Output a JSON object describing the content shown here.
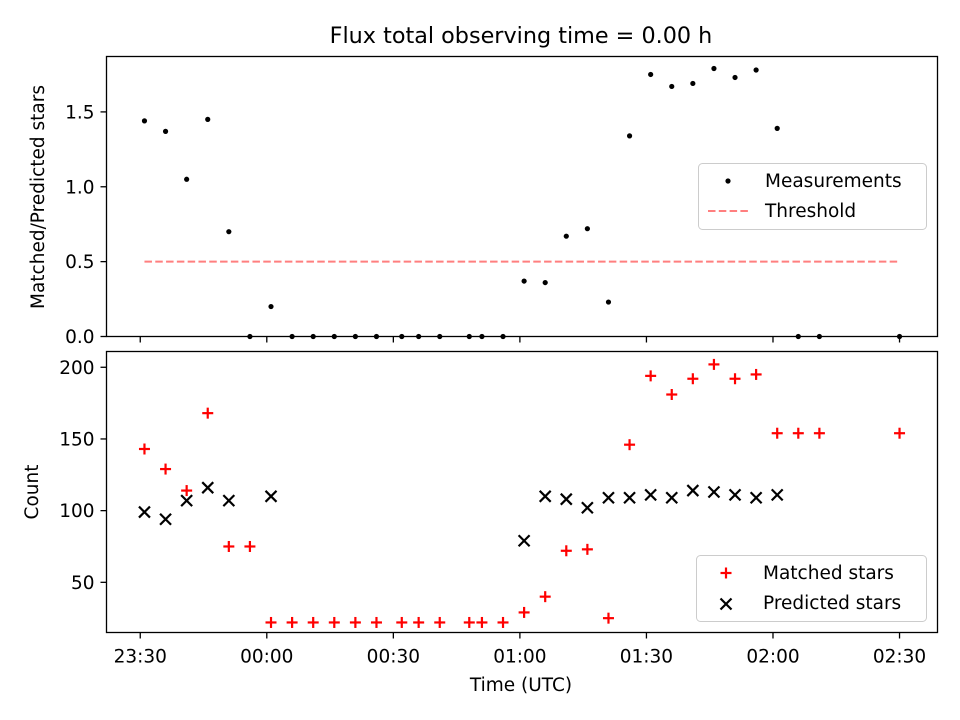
{
  "chart_data": [
    {
      "type": "scatter",
      "title": "Flux total observing time = 0.00 h",
      "xlabel": "",
      "ylabel": "Matched/Predicted stars",
      "ylim": [
        0,
        1.87
      ],
      "yticks": [
        "0.0",
        "0.5",
        "1.0",
        "1.5"
      ],
      "legend_position": "center-right",
      "series": [
        {
          "name": "Measurements",
          "marker": "dot",
          "color": "#000000",
          "points": [
            {
              "x": "23:31",
              "y": 1.44
            },
            {
              "x": "23:36",
              "y": 1.37
            },
            {
              "x": "23:41",
              "y": 1.05
            },
            {
              "x": "23:46",
              "y": 1.45
            },
            {
              "x": "23:51",
              "y": 0.7
            },
            {
              "x": "23:56",
              "y": 0.0
            },
            {
              "x": "00:01",
              "y": 0.2
            },
            {
              "x": "00:06",
              "y": 0.0
            },
            {
              "x": "00:11",
              "y": 0.0
            },
            {
              "x": "00:16",
              "y": 0.0
            },
            {
              "x": "00:21",
              "y": 0.0
            },
            {
              "x": "00:26",
              "y": 0.0
            },
            {
              "x": "00:32",
              "y": 0.0
            },
            {
              "x": "00:36",
              "y": 0.0
            },
            {
              "x": "00:41",
              "y": 0.0
            },
            {
              "x": "00:48",
              "y": 0.0
            },
            {
              "x": "00:51",
              "y": 0.0
            },
            {
              "x": "00:56",
              "y": 0.0
            },
            {
              "x": "01:01",
              "y": 0.37
            },
            {
              "x": "01:06",
              "y": 0.36
            },
            {
              "x": "01:11",
              "y": 0.67
            },
            {
              "x": "01:16",
              "y": 0.72
            },
            {
              "x": "01:21",
              "y": 0.23
            },
            {
              "x": "01:26",
              "y": 1.34
            },
            {
              "x": "01:31",
              "y": 1.75
            },
            {
              "x": "01:36",
              "y": 1.67
            },
            {
              "x": "01:41",
              "y": 1.69
            },
            {
              "x": "01:46",
              "y": 1.79
            },
            {
              "x": "01:51",
              "y": 1.73
            },
            {
              "x": "01:56",
              "y": 1.78
            },
            {
              "x": "02:01",
              "y": 1.39
            },
            {
              "x": "02:06",
              "y": 0.0
            },
            {
              "x": "02:11",
              "y": 0.0
            },
            {
              "x": "02:30",
              "y": 0.0
            }
          ]
        },
        {
          "name": "Threshold",
          "marker": "dashed-line",
          "color": "#ff7f7f",
          "points": [
            {
              "x": "23:31",
              "y": 0.5
            },
            {
              "x": "02:30",
              "y": 0.5
            }
          ]
        }
      ]
    },
    {
      "type": "scatter",
      "title": "",
      "xlabel": "Time (UTC)",
      "ylabel": "Count",
      "ylim": [
        15,
        211
      ],
      "yticks": [
        "50",
        "100",
        "150",
        "200"
      ],
      "xlim": [
        "23:22",
        "02:39"
      ],
      "xticks": [
        "23:30",
        "00:00",
        "00:30",
        "01:00",
        "01:30",
        "02:00",
        "02:30"
      ],
      "legend_position": "lower-right",
      "series": [
        {
          "name": "Matched stars",
          "marker": "plus",
          "color": "#ff0000",
          "points": [
            {
              "x": "23:31",
              "y": 143
            },
            {
              "x": "23:36",
              "y": 129
            },
            {
              "x": "23:41",
              "y": 114
            },
            {
              "x": "23:46",
              "y": 168
            },
            {
              "x": "23:51",
              "y": 75
            },
            {
              "x": "23:56",
              "y": 75
            },
            {
              "x": "00:01",
              "y": 22
            },
            {
              "x": "00:06",
              "y": 22
            },
            {
              "x": "00:11",
              "y": 22
            },
            {
              "x": "00:16",
              "y": 22
            },
            {
              "x": "00:21",
              "y": 22
            },
            {
              "x": "00:26",
              "y": 22
            },
            {
              "x": "00:32",
              "y": 22
            },
            {
              "x": "00:36",
              "y": 22
            },
            {
              "x": "00:41",
              "y": 22
            },
            {
              "x": "00:48",
              "y": 22
            },
            {
              "x": "00:51",
              "y": 22
            },
            {
              "x": "00:56",
              "y": 22
            },
            {
              "x": "01:01",
              "y": 29
            },
            {
              "x": "01:06",
              "y": 40
            },
            {
              "x": "01:11",
              "y": 72
            },
            {
              "x": "01:16",
              "y": 73
            },
            {
              "x": "01:21",
              "y": 25
            },
            {
              "x": "01:26",
              "y": 146
            },
            {
              "x": "01:31",
              "y": 194
            },
            {
              "x": "01:36",
              "y": 181
            },
            {
              "x": "01:41",
              "y": 192
            },
            {
              "x": "01:46",
              "y": 202
            },
            {
              "x": "01:51",
              "y": 192
            },
            {
              "x": "01:56",
              "y": 195
            },
            {
              "x": "02:01",
              "y": 154
            },
            {
              "x": "02:06",
              "y": 154
            },
            {
              "x": "02:11",
              "y": 154
            },
            {
              "x": "02:30",
              "y": 154
            }
          ]
        },
        {
          "name": "Predicted stars",
          "marker": "x",
          "color": "#000000",
          "points": [
            {
              "x": "23:31",
              "y": 99
            },
            {
              "x": "23:36",
              "y": 94
            },
            {
              "x": "23:41",
              "y": 107
            },
            {
              "x": "23:46",
              "y": 116
            },
            {
              "x": "23:51",
              "y": 107
            },
            {
              "x": "00:01",
              "y": 110
            },
            {
              "x": "01:01",
              "y": 79
            },
            {
              "x": "01:06",
              "y": 110
            },
            {
              "x": "01:11",
              "y": 108
            },
            {
              "x": "01:16",
              "y": 102
            },
            {
              "x": "01:21",
              "y": 109
            },
            {
              "x": "01:26",
              "y": 109
            },
            {
              "x": "01:31",
              "y": 111
            },
            {
              "x": "01:36",
              "y": 109
            },
            {
              "x": "01:41",
              "y": 114
            },
            {
              "x": "01:46",
              "y": 113
            },
            {
              "x": "01:51",
              "y": 111
            },
            {
              "x": "01:56",
              "y": 109
            },
            {
              "x": "02:01",
              "y": 111
            }
          ]
        }
      ]
    }
  ]
}
